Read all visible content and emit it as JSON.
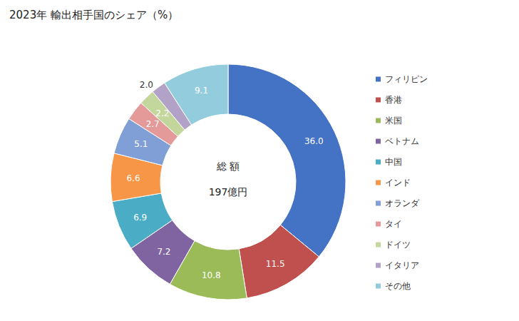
{
  "chart_data": {
    "type": "pie",
    "title": "2023年 輸出相手国のシェア（%）",
    "annotations": [
      "総 額",
      "197億円"
    ],
    "categories": [
      "フィリピン",
      "香港",
      "米国",
      "ベトナム",
      "中国",
      "インド",
      "オランダ",
      "タイ",
      "ドイツ",
      "イタリア",
      "その他"
    ],
    "values": [
      36.0,
      11.5,
      10.8,
      7.2,
      6.9,
      6.6,
      5.1,
      2.7,
      2.2,
      2.0,
      9.1
    ],
    "value_labels": [
      "36.0",
      "11.5",
      "10.8",
      "7.2",
      "6.9",
      "6.6",
      "5.1",
      "2.7",
      "2.2",
      "2.0",
      "9.1"
    ],
    "colors": [
      "#4472c4",
      "#c0504d",
      "#9bbb59",
      "#8064a2",
      "#4bacc6",
      "#f79646",
      "#7f9fd6",
      "#e39a99",
      "#c3d69b",
      "#b3a2c7",
      "#93cddd"
    ],
    "legend": "right",
    "data_labels": true
  }
}
